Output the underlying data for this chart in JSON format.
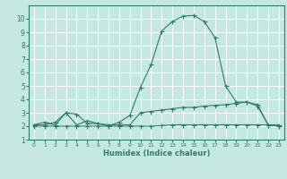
{
  "line1_x": [
    0,
    1,
    2,
    3,
    4,
    5,
    6,
    7,
    8,
    9,
    10,
    11,
    12,
    13,
    14,
    15,
    16,
    17,
    18,
    19,
    20,
    21,
    22,
    23
  ],
  "line1_y": [
    2.1,
    2.3,
    2.1,
    3.0,
    2.1,
    2.4,
    2.2,
    2.0,
    2.3,
    2.8,
    4.9,
    6.6,
    9.1,
    9.8,
    10.2,
    10.25,
    9.8,
    8.6,
    5.0,
    3.8,
    3.8,
    3.5,
    2.1,
    2.0
  ],
  "line2_x": [
    0,
    1,
    2,
    3,
    4,
    5,
    6,
    7,
    8,
    9,
    10,
    11,
    12,
    13,
    14,
    15,
    16,
    17,
    18,
    19,
    20,
    21,
    22,
    23
  ],
  "line2_y": [
    2.1,
    2.1,
    2.3,
    3.0,
    2.9,
    2.2,
    2.2,
    2.1,
    2.1,
    2.1,
    3.0,
    3.1,
    3.2,
    3.3,
    3.4,
    3.4,
    3.5,
    3.55,
    3.6,
    3.7,
    3.8,
    3.6,
    2.1,
    2.0
  ],
  "line3_x": [
    0,
    1,
    2,
    3,
    4,
    5,
    6,
    7,
    8,
    9,
    10,
    11,
    12,
    13,
    14,
    15,
    16,
    17,
    18,
    19,
    20,
    21,
    22,
    23
  ],
  "line3_y": [
    2.0,
    2.0,
    2.0,
    2.0,
    2.0,
    2.0,
    2.0,
    2.0,
    2.0,
    2.0,
    2.0,
    2.0,
    2.05,
    2.1,
    2.1,
    2.1,
    2.1,
    2.1,
    2.1,
    2.1,
    2.1,
    2.1,
    2.1,
    2.1
  ],
  "line_color": "#2E7D6B",
  "bg_color": "#C5E8E2",
  "grid_color": "#ffffff",
  "xlabel": "Humidex (Indice chaleur)",
  "ylim": [
    1,
    11
  ],
  "xlim": [
    -0.5,
    23.5
  ],
  "yticks": [
    1,
    2,
    3,
    4,
    5,
    6,
    7,
    8,
    9,
    10
  ],
  "xticks": [
    0,
    1,
    2,
    3,
    4,
    5,
    6,
    7,
    8,
    9,
    10,
    11,
    12,
    13,
    14,
    15,
    16,
    17,
    18,
    19,
    20,
    21,
    22,
    23
  ],
  "xlabel_fontsize": 6.0,
  "tick_fontsize": 5.5,
  "marker_size": 1.8,
  "line_width": 0.8
}
